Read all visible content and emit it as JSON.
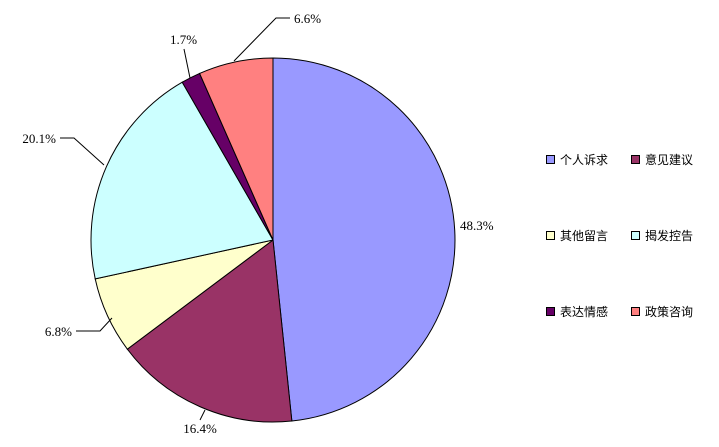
{
  "chart_data": {
    "type": "pie",
    "title": "",
    "categories": [
      "个人诉求",
      "意见建议",
      "其他留言",
      "揭发控告",
      "表达情感",
      "政策咨询"
    ],
    "values": [
      48.3,
      16.4,
      6.8,
      20.1,
      1.7,
      6.6
    ],
    "value_labels": [
      "48.3%",
      "16.4%",
      "6.8%",
      "20.1%",
      "1.7%",
      "6.6%"
    ],
    "colors": [
      "#9999ff",
      "#993366",
      "#ffffcc",
      "#ccffff",
      "#660066",
      "#ff8080"
    ],
    "order_drawn": [
      0,
      1,
      2,
      3,
      4,
      5
    ],
    "legend": {
      "position": "right",
      "columns": 2
    }
  }
}
